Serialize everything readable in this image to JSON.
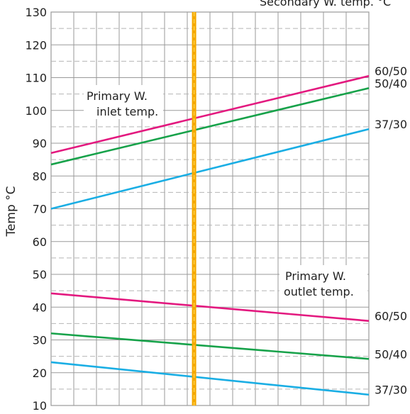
{
  "chart_data": {
    "type": "line",
    "ylabel": "Temp °C",
    "ylim": [
      10,
      130
    ],
    "yticks": [
      10,
      20,
      30,
      40,
      50,
      60,
      70,
      80,
      90,
      100,
      110,
      120,
      130
    ],
    "xlim": [
      0,
      1
    ],
    "grid": true,
    "top_label": "Secondary W. temp. °C",
    "region_labels": {
      "inlet": [
        "Primary W.",
        "inlet temp."
      ],
      "outlet": [
        "Primary W.",
        "outlet temp."
      ]
    },
    "marker_x": 0.45,
    "series": [
      {
        "group": "inlet",
        "name": "60/50",
        "color": "#e3197f",
        "x": [
          0,
          1
        ],
        "y": [
          87,
          110.5
        ]
      },
      {
        "group": "inlet",
        "name": "50/40",
        "color": "#17a24a",
        "x": [
          0,
          1
        ],
        "y": [
          83.5,
          106.8
        ]
      },
      {
        "group": "inlet",
        "name": "37/30",
        "color": "#1aaee4",
        "x": [
          0,
          1
        ],
        "y": [
          70,
          94.3
        ]
      },
      {
        "group": "outlet",
        "name": "60/50",
        "color": "#e3197f",
        "x": [
          0,
          1
        ],
        "y": [
          44.2,
          35.8
        ]
      },
      {
        "group": "outlet",
        "name": "50/40",
        "color": "#17a24a",
        "x": [
          0,
          1
        ],
        "y": [
          32,
          24.2
        ]
      },
      {
        "group": "outlet",
        "name": "37/30",
        "color": "#1aaee4",
        "x": [
          0,
          1
        ],
        "y": [
          23.2,
          13.3
        ]
      }
    ],
    "colors": {
      "marker": "#f5a800",
      "marker_core": "#ffd24a",
      "grid_major": "#9a9a9a",
      "grid_minor": "#b5b5b5"
    }
  }
}
